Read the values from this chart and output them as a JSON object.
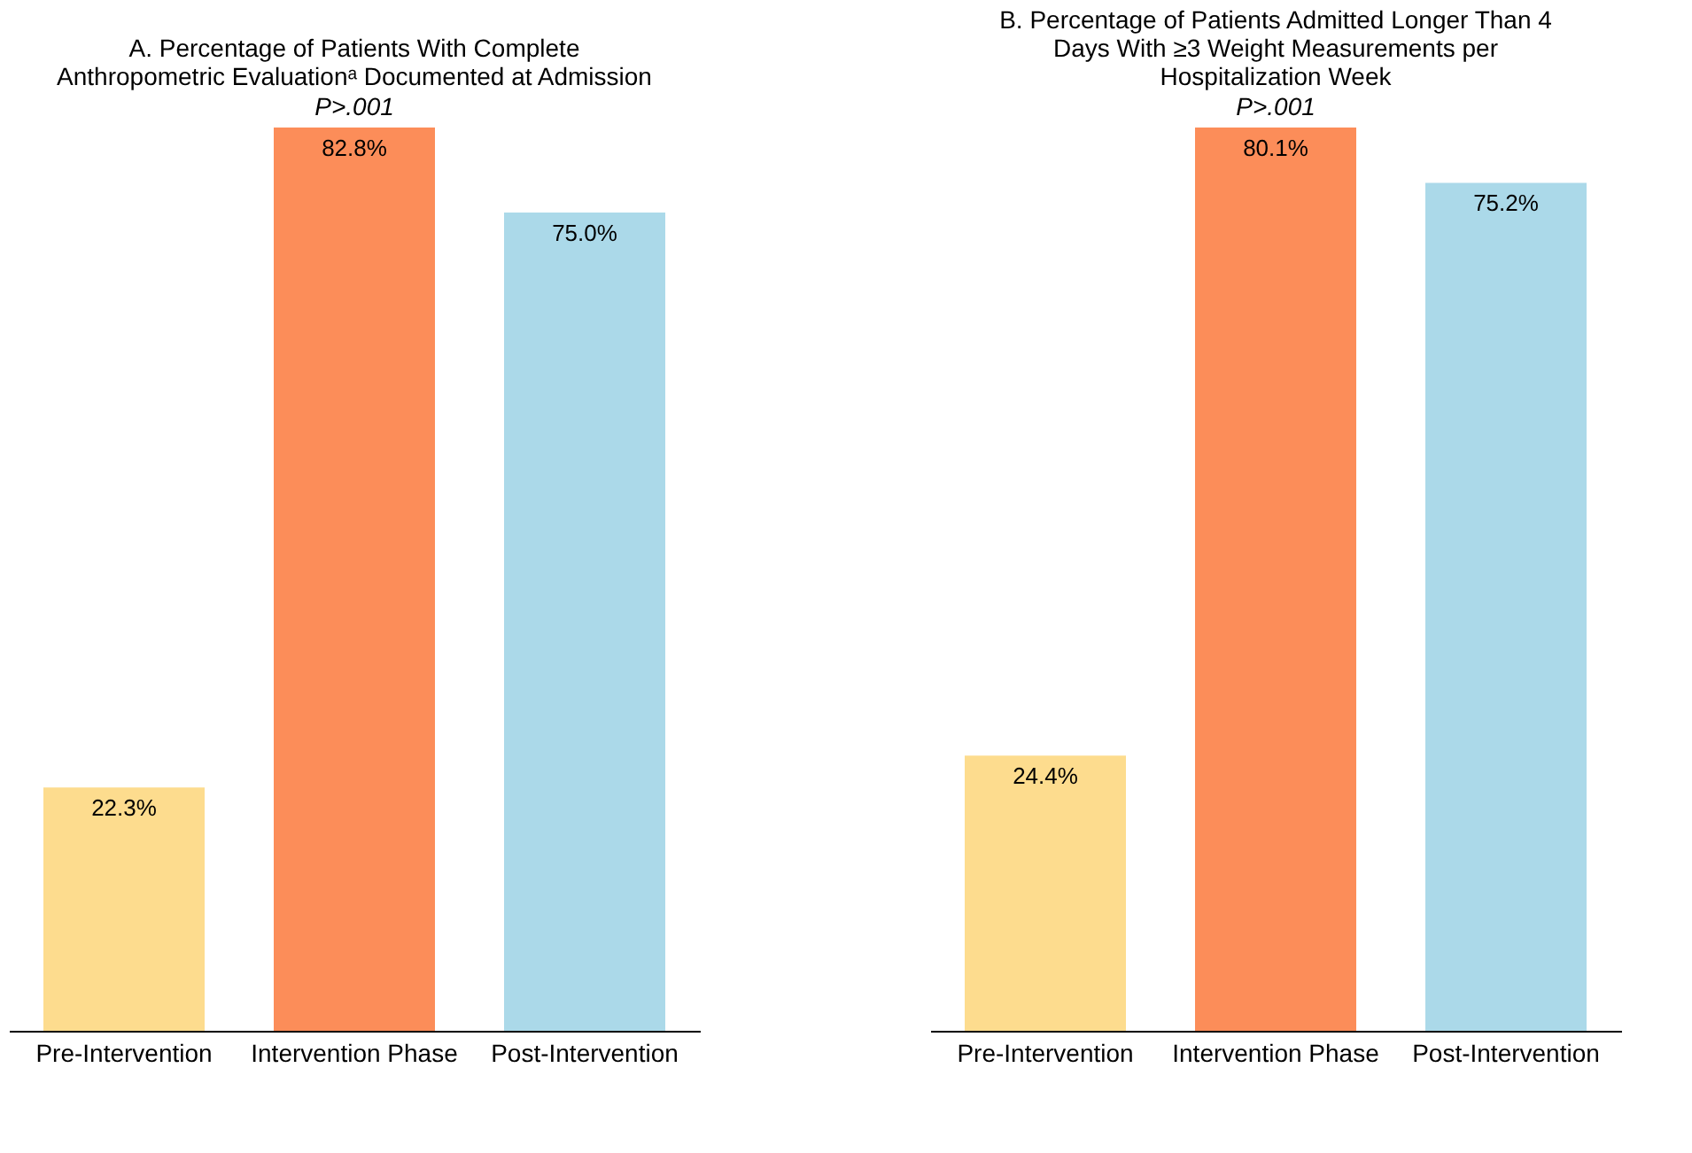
{
  "chart_data": [
    {
      "type": "bar",
      "title": "A. Percentage of Patients With Complete Anthropometric Evaluationᵃ Documented at Admission",
      "subtitle": "P>.001",
      "categories": [
        "Pre-Intervention",
        "Intervention Phase",
        "Post-Intervention"
      ],
      "values": [
        22.3,
        82.8,
        75.0
      ],
      "value_labels": [
        "22.3%",
        "82.8%",
        "75.0%"
      ],
      "colors": [
        "#fddc8e",
        "#fc8d59",
        "#abd9e9"
      ],
      "tick_labels": "x"
    },
    {
      "type": "bar",
      "title": "B. Percentage of Patients Admitted Longer Than 4 Days With ≥3 Weight Measurements per Hospitalization Week",
      "subtitle": "P>.001",
      "categories": [
        "Pre-Intervention",
        "Intervention Phase",
        "Post-Intervention"
      ],
      "values": [
        24.4,
        80.1,
        75.2
      ],
      "value_labels": [
        "24.4%",
        "80.1%",
        "75.2%"
      ],
      "colors": [
        "#fddc8e",
        "#fc8d59",
        "#abd9e9"
      ],
      "tick_labels": "x"
    }
  ]
}
